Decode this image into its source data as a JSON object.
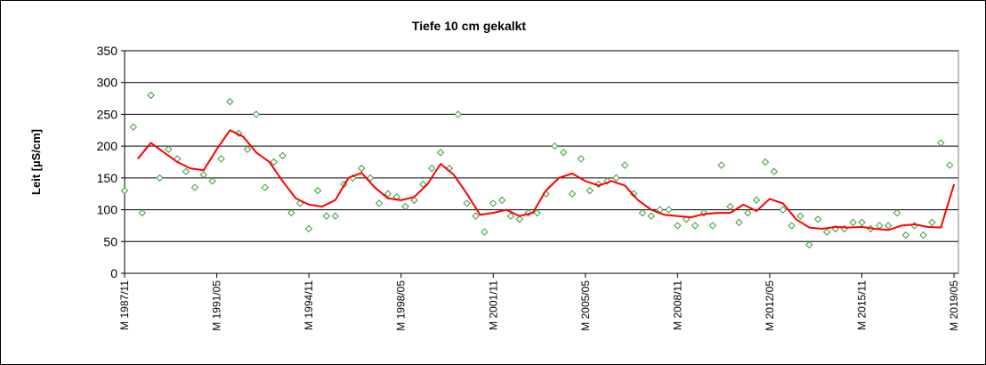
{
  "chart_data": {
    "type": "scatter",
    "title": "Tiefe   10 cm      gekalkt",
    "ylabel": "Leit [µS/cm]",
    "ylim": [
      0,
      350
    ],
    "yticks": [
      0,
      50,
      100,
      150,
      200,
      250,
      300,
      350
    ],
    "xlim": [
      "1987-11",
      "2019-07"
    ],
    "xticks": [
      {
        "value": "1987-11",
        "label": "M 1987/11"
      },
      {
        "value": "1991-05",
        "label": "M 1991/05"
      },
      {
        "value": "1994-11",
        "label": "M 1994/11"
      },
      {
        "value": "1998-05",
        "label": "M 1998/05"
      },
      {
        "value": "2001-11",
        "label": "M 2001/11"
      },
      {
        "value": "2005-05",
        "label": "M 2005/05"
      },
      {
        "value": "2008-11",
        "label": "M 2008/11"
      },
      {
        "value": "2012-05",
        "label": "M 2012/05"
      },
      {
        "value": "2015-11",
        "label": "M 2015/11"
      },
      {
        "value": "2019-05",
        "label": "M 2019/05"
      }
    ],
    "grid": true,
    "series": [
      {
        "type": "scatter",
        "color": "#3a9a3a",
        "x": [
          "1987-11",
          "1988-03",
          "1988-07",
          "1988-11",
          "1989-03",
          "1989-07",
          "1989-11",
          "1990-03",
          "1990-07",
          "1990-11",
          "1991-03",
          "1991-07",
          "1991-11",
          "1992-03",
          "1992-07",
          "1992-11",
          "1993-03",
          "1993-07",
          "1993-11",
          "1994-03",
          "1994-07",
          "1994-11",
          "1995-03",
          "1995-07",
          "1995-11",
          "1996-03",
          "1996-07",
          "1996-11",
          "1997-03",
          "1997-07",
          "1997-11",
          "1998-03",
          "1998-07",
          "1998-11",
          "1999-03",
          "1999-07",
          "1999-11",
          "2000-03",
          "2000-07",
          "2000-11",
          "2001-03",
          "2001-07",
          "2001-11",
          "2002-03",
          "2002-07",
          "2002-11",
          "2003-03",
          "2003-07",
          "2003-11",
          "2004-03",
          "2004-07",
          "2004-11",
          "2005-03",
          "2005-07",
          "2005-11",
          "2006-03",
          "2006-07",
          "2006-11",
          "2007-03",
          "2007-07",
          "2007-11",
          "2008-03",
          "2008-07",
          "2008-11",
          "2009-03",
          "2009-07",
          "2009-11",
          "2010-03",
          "2010-07",
          "2010-11",
          "2011-03",
          "2011-07",
          "2011-11",
          "2012-03",
          "2012-07",
          "2012-11",
          "2013-03",
          "2013-07",
          "2013-11",
          "2014-03",
          "2014-07",
          "2014-11",
          "2015-03",
          "2015-07",
          "2015-11",
          "2016-03",
          "2016-07",
          "2016-11",
          "2017-03",
          "2017-07",
          "2017-11",
          "2018-03",
          "2018-07",
          "2018-11",
          "2019-03"
        ],
        "values": [
          130,
          230,
          95,
          280,
          150,
          195,
          180,
          160,
          135,
          155,
          145,
          180,
          270,
          220,
          195,
          250,
          135,
          175,
          185,
          95,
          110,
          70,
          130,
          90,
          90,
          140,
          150,
          165,
          150,
          110,
          125,
          120,
          105,
          115,
          140,
          165,
          190,
          165,
          250,
          110,
          90,
          65,
          110,
          115,
          90,
          85,
          95,
          95,
          125,
          200,
          190,
          125,
          180,
          130,
          140,
          145,
          150,
          170,
          125,
          95,
          90,
          100,
          100,
          75,
          85,
          75,
          95,
          75,
          170,
          105,
          80,
          95,
          115,
          175,
          160,
          100,
          75,
          90,
          45,
          85,
          65,
          70,
          70,
          80,
          80,
          70,
          75,
          75,
          95,
          60,
          75,
          60,
          80,
          205,
          170
        ]
      },
      {
        "type": "line",
        "color": "#ff0000",
        "x": [
          "1988-05",
          "1988-11",
          "1989-05",
          "1989-11",
          "1990-05",
          "1990-11",
          "1991-05",
          "1991-11",
          "1992-05",
          "1992-11",
          "1993-05",
          "1993-11",
          "1994-05",
          "1994-11",
          "1995-05",
          "1995-11",
          "1996-05",
          "1996-11",
          "1997-05",
          "1997-11",
          "1998-05",
          "1998-11",
          "1999-05",
          "1999-11",
          "2000-05",
          "2000-11",
          "2001-05",
          "2001-11",
          "2002-05",
          "2002-11",
          "2003-05",
          "2003-11",
          "2004-05",
          "2004-11",
          "2005-05",
          "2005-11",
          "2006-05",
          "2006-11",
          "2007-05",
          "2007-11",
          "2008-05",
          "2008-11",
          "2009-05",
          "2009-11",
          "2010-05",
          "2010-11",
          "2011-05",
          "2011-11",
          "2012-05",
          "2012-11",
          "2013-05",
          "2013-11",
          "2014-05",
          "2014-11",
          "2015-05",
          "2015-11",
          "2016-05",
          "2016-11",
          "2017-05",
          "2017-11",
          "2018-05",
          "2018-11",
          "2019-05"
        ],
        "values": [
          180,
          205,
          190,
          175,
          165,
          162,
          195,
          225,
          215,
          190,
          175,
          145,
          118,
          108,
          105,
          115,
          150,
          158,
          135,
          118,
          115,
          120,
          140,
          172,
          155,
          125,
          92,
          95,
          100,
          90,
          95,
          130,
          150,
          157,
          145,
          138,
          145,
          138,
          115,
          100,
          92,
          90,
          88,
          93,
          95,
          95,
          108,
          98,
          117,
          110,
          85,
          72,
          70,
          73,
          72,
          73,
          70,
          68,
          75,
          77,
          73,
          72,
          140
        ]
      }
    ]
  }
}
